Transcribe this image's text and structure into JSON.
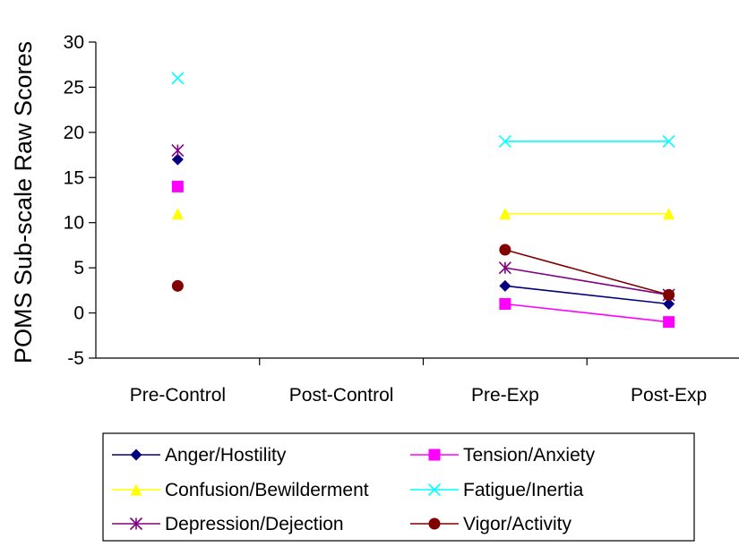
{
  "chart_data": {
    "type": "line",
    "categories": [
      "Pre-Control",
      "Post-Control",
      "Pre-Exp",
      "Post-Exp"
    ],
    "ylabel": "POMS Sub-scale Raw Scores",
    "ylim": [
      -5,
      30
    ],
    "yticks": [
      "-5",
      "0",
      "5",
      "10",
      "15",
      "20",
      "25",
      "30"
    ],
    "grid": false,
    "legend_position": "bottom",
    "series": [
      {
        "name": "Anger/Hostility",
        "color": "#000080",
        "marker": "diamond",
        "values": [
          17,
          null,
          3,
          1
        ]
      },
      {
        "name": "Tension/Anxiety",
        "color": "#FF00FF",
        "marker": "square",
        "values": [
          14,
          null,
          1,
          -1
        ]
      },
      {
        "name": "Confusion/Bewilderment",
        "color": "#FFFF00",
        "marker": "triangle",
        "values": [
          11,
          null,
          11,
          11
        ]
      },
      {
        "name": "Fatigue/Inertia",
        "color": "#00FFFF",
        "marker": "x",
        "values": [
          26,
          null,
          19,
          19
        ]
      },
      {
        "name": "Depression/Dejection",
        "color": "#800080",
        "marker": "asterisk",
        "values": [
          18,
          null,
          5,
          2
        ]
      },
      {
        "name": "Vigor/Activity",
        "color": "#800000",
        "marker": "circle",
        "values": [
          3,
          null,
          7,
          2
        ]
      }
    ]
  }
}
